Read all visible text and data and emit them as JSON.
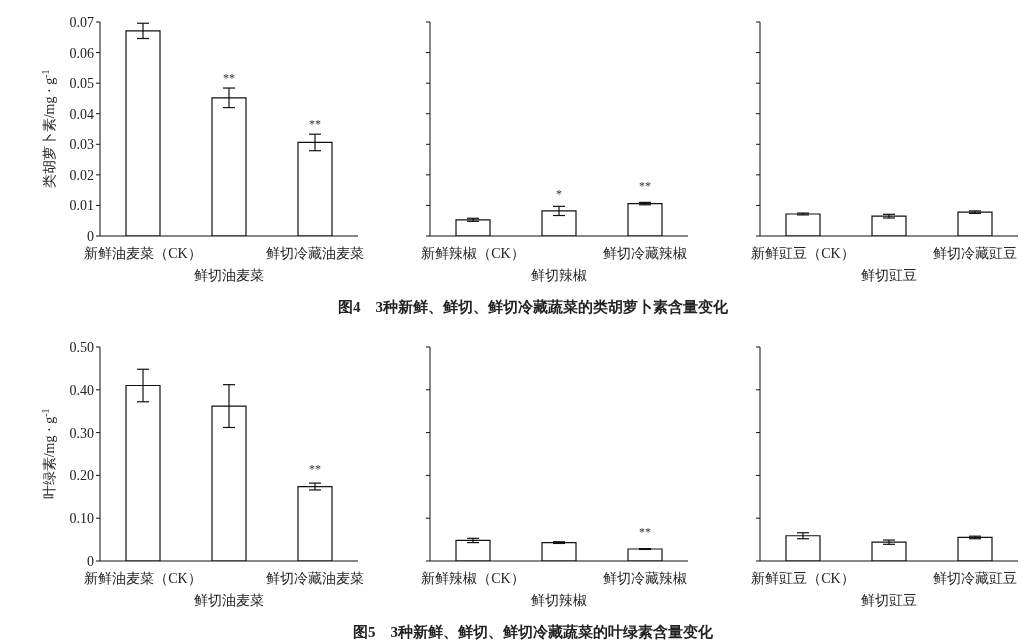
{
  "chart_data": [
    {
      "type": "bar",
      "ylabel": "类胡萝卜素/mg · g$^{-1}$",
      "categories": [
        "新鲜油麦菜（CK）",
        "鲜切油麦菜",
        "鲜切冷藏油麦菜"
      ],
      "values": [
        0.0671,
        0.0452,
        0.0306
      ],
      "errors": [
        0.0025,
        0.0032,
        0.0027
      ],
      "color": "#ffffff",
      "ylim": [
        0,
        0.07
      ],
      "yticks": [
        0,
        0.01,
        0.02,
        0.03,
        0.04,
        0.05,
        0.06,
        0.07
      ],
      "annotations": [
        {
          "text": "**",
          "x": "鲜切油麦菜",
          "y": 0.0452
        },
        {
          "text": "**",
          "x": "鲜切冷藏油麦菜",
          "y": 0.0306
        }
      ]
    },
    {
      "type": "bar",
      "title": "图4　3种新鲜、鲜切、鲜切冷藏蔬菜的类胡萝卜素含量变化",
      "categories": [
        "新鲜辣椒（CK）",
        "鲜切辣椒",
        "鲜切冷藏辣椒"
      ],
      "values": [
        0.0053,
        0.0082,
        0.0106
      ],
      "errors": [
        0.0005,
        0.0015,
        0.0004
      ],
      "color": "#ffffff",
      "ylim": [
        0,
        0.07
      ],
      "yticks": [
        {
          "value": 0,
          "label": null
        },
        {
          "value": 0.01,
          "label": null
        },
        {
          "value": 0.02,
          "label": null
        },
        {
          "value": 0.03,
          "label": null
        },
        {
          "value": 0.04,
          "label": null
        },
        {
          "value": 0.05,
          "label": null
        },
        {
          "value": 0.06,
          "label": null
        },
        {
          "value": 0.07,
          "label": null
        }
      ],
      "tick_labels": "x",
      "annotations": [
        {
          "text": "*",
          "x": "鲜切辣椒",
          "y": 0.0082
        },
        {
          "text": "**",
          "x": "鲜切冷藏辣椒",
          "y": 0.0106
        }
      ]
    },
    {
      "type": "bar",
      "categories": [
        "新鲜豇豆（CK）",
        "鲜切豇豆",
        "鲜切冷藏豇豆"
      ],
      "values": [
        0.0072,
        0.0065,
        0.0078
      ],
      "errors": [
        0.0003,
        0.0006,
        0.0004
      ],
      "color": "#ffffff",
      "ylim": [
        0,
        0.07
      ],
      "yticks": [
        {
          "value": 0,
          "label": null
        },
        {
          "value": 0.01,
          "label": null
        },
        {
          "value": 0.02,
          "label": null
        },
        {
          "value": 0.03,
          "label": null
        },
        {
          "value": 0.04,
          "label": null
        },
        {
          "value": 0.05,
          "label": null
        },
        {
          "value": 0.06,
          "label": null
        },
        {
          "value": 0.07,
          "label": null
        }
      ],
      "tick_labels": "x"
    },
    {
      "type": "bar",
      "ylabel": "叶绿素/mg · g$^{-1}$",
      "categories": [
        "新鲜油麦菜（CK）",
        "鲜切油麦菜",
        "鲜切冷藏油麦菜"
      ],
      "values": [
        0.41,
        0.362,
        0.174
      ],
      "errors": [
        0.038,
        0.05,
        0.008
      ],
      "color": "#ffffff",
      "ylim": [
        0,
        0.5
      ],
      "yticks": [
        0,
        {
          "value": 0.1,
          "label": "0.10"
        },
        {
          "value": 0.2,
          "label": "0.20"
        },
        {
          "value": 0.3,
          "label": "0.30"
        },
        {
          "value": 0.4,
          "label": "0.40"
        },
        {
          "value": 0.5,
          "label": "0.50"
        }
      ],
      "annotations": [
        {
          "text": "**",
          "x": "鲜切冷藏油麦菜",
          "y": 0.174
        }
      ]
    },
    {
      "type": "bar",
      "title": "图5　3种新鲜、鲜切、鲜切冷藏蔬菜的叶绿素含量变化",
      "categories": [
        "新鲜辣椒（CK）",
        "鲜切辣椒",
        "鲜切冷藏辣椒"
      ],
      "values": [
        0.048,
        0.043,
        0.028
      ],
      "errors": [
        0.005,
        0.002,
        0.001
      ],
      "color": "#ffffff",
      "ylim": [
        0,
        0.5
      ],
      "yticks": [
        {
          "value": 0,
          "label": null
        },
        {
          "value": 0.1,
          "label": null
        },
        {
          "value": 0.2,
          "label": null
        },
        {
          "value": 0.3,
          "label": null
        },
        {
          "value": 0.4,
          "label": null
        },
        {
          "value": 0.5,
          "label": null
        }
      ],
      "tick_labels": "x",
      "annotations": [
        {
          "text": "**",
          "x": "鲜切冷藏辣椒",
          "y": 0.028
        }
      ]
    },
    {
      "type": "bar",
      "categories": [
        "新鲜豇豆（CK）",
        "鲜切豇豆",
        "鲜切冷藏豇豆"
      ],
      "values": [
        0.059,
        0.044,
        0.055
      ],
      "errors": [
        0.007,
        0.005,
        0.003
      ],
      "color": "#ffffff",
      "ylim": [
        0,
        0.5
      ],
      "yticks": [
        {
          "value": 0,
          "label": null
        },
        {
          "value": 0.1,
          "label": null
        },
        {
          "value": 0.2,
          "label": null
        },
        {
          "value": 0.3,
          "label": null
        },
        {
          "value": 0.4,
          "label": null
        },
        {
          "value": 0.5,
          "label": null
        }
      ],
      "tick_labels": "x"
    }
  ]
}
